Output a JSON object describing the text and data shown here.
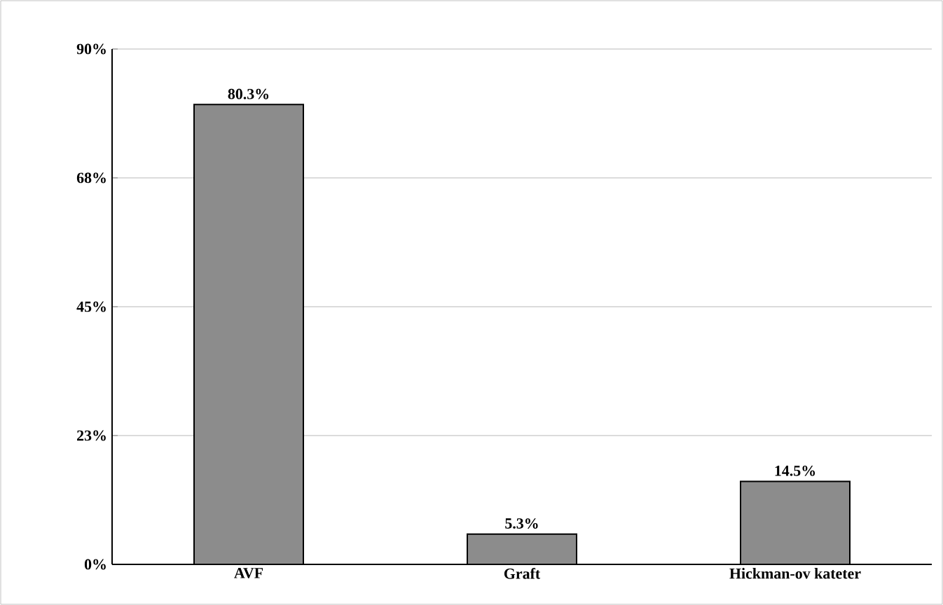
{
  "chart_data": {
    "type": "bar",
    "categories": [
      "AVF",
      "Graft",
      "Hickman-ov kateter"
    ],
    "values": [
      80.3,
      5.3,
      14.5
    ],
    "value_labels": [
      "80.3%",
      "5.3%",
      "14.5%"
    ],
    "color": "#8c8c8c",
    "ylim": [
      0,
      90
    ],
    "yticks": [
      {
        "value": 0,
        "label": "0%"
      },
      {
        "value": 22.5,
        "label": "23%"
      },
      {
        "value": 45,
        "label": "45%"
      },
      {
        "value": 67.5,
        "label": "68%"
      },
      {
        "value": 90,
        "label": "90%"
      }
    ],
    "grid": "y"
  }
}
